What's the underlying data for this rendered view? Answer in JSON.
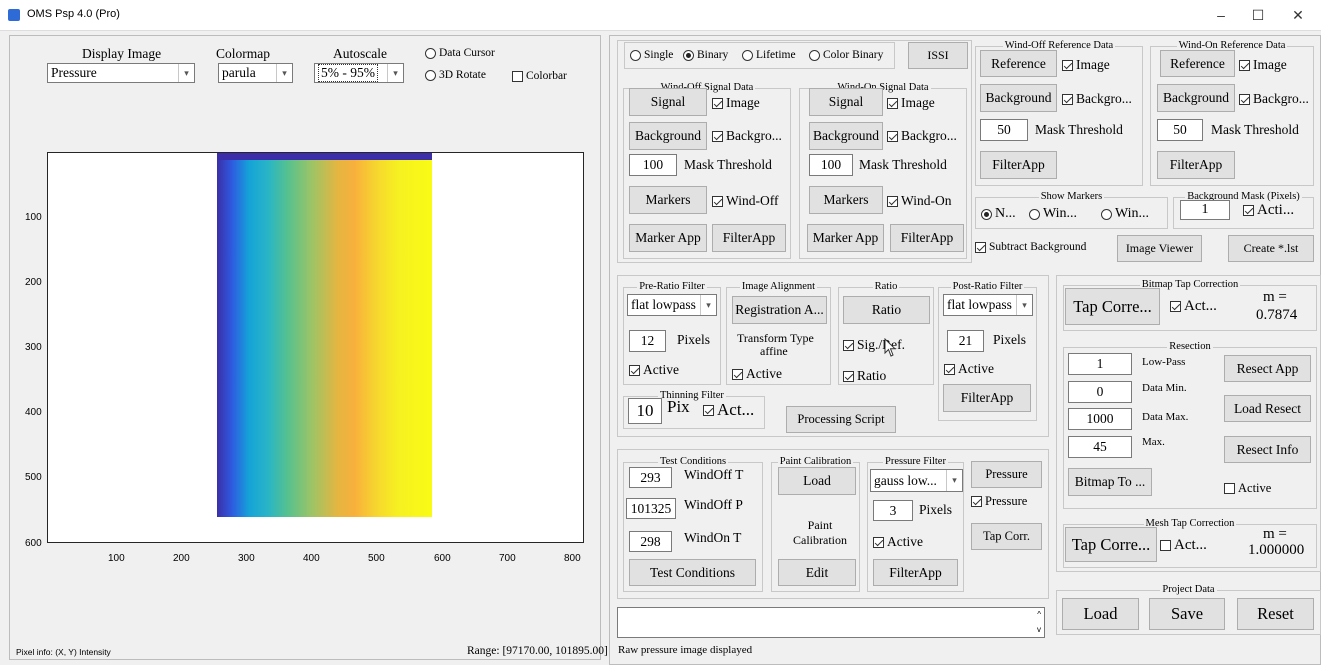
{
  "window": {
    "title": "OMS Psp 4.0 (Pro)",
    "minimize": "–",
    "maximize": "☐",
    "close": "✕"
  },
  "left": {
    "display_image": {
      "label": "Display Image",
      "value": "Pressure"
    },
    "colormap": {
      "label": "Colormap",
      "value": "parula"
    },
    "autoscale": {
      "label": "Autoscale",
      "value": "5% - 95%"
    },
    "data_cursor": "Data Cursor",
    "rotate3d": "3D Rotate",
    "colorbar": "Colorbar",
    "pixel_info": "Pixel info: (X, Y)  Intensity",
    "range": "Range: [97170.00, 101895.00]",
    "xticks": [
      "100",
      "200",
      "300",
      "400",
      "500",
      "600",
      "700",
      "800"
    ],
    "yticks": [
      "100",
      "200",
      "300",
      "400",
      "500",
      "600"
    ]
  },
  "mode": {
    "single": "Single",
    "binary": "Binary",
    "lifetime": "Lifetime",
    "color_binary": "Color Binary",
    "issi": "ISSI"
  },
  "wind_off_signal": {
    "title": "Wind-Off Signal Data",
    "signal": "Signal",
    "image": "Image",
    "background": "Background",
    "backgro": "Backgro...",
    "mask_value": "100",
    "mask_label": "Mask Threshold",
    "markers": "Markers",
    "wind": "Wind-Off",
    "marker_app": "Marker App",
    "filter_app": "FilterApp"
  },
  "wind_on_signal": {
    "title": "Wind-On Signal Data",
    "signal": "Signal",
    "image": "Image",
    "background": "Background",
    "backgro": "Backgro...",
    "mask_value": "100",
    "mask_label": "Mask Threshold",
    "markers": "Markers",
    "wind": "Wind-On",
    "marker_app": "Marker App",
    "filter_app": "FilterApp"
  },
  "wind_off_ref": {
    "title": "Wind-Off Reference Data",
    "reference": "Reference",
    "image": "Image",
    "background": "Background",
    "backgro": "Backgro...",
    "mask_value": "50",
    "mask_label": "Mask Threshold",
    "filter_app": "FilterApp"
  },
  "wind_on_ref": {
    "title": "Wind-On Reference Data",
    "reference": "Reference",
    "image": "Image",
    "background": "Background",
    "backgro": "Backgro...",
    "mask_value": "50",
    "mask_label": "Mask Threshold",
    "filter_app": "FilterApp"
  },
  "show_markers": {
    "title": "Show Markers",
    "opt1": "N...",
    "opt2": "Win...",
    "opt3": "Win..."
  },
  "bg_mask": {
    "title": "Background Mask (Pixels)",
    "value": "1",
    "active": "Acti..."
  },
  "subtract_background": "Subtract Background",
  "image_viewer": "Image Viewer",
  "create_lst": "Create *.lst",
  "pre_ratio": {
    "title": "Pre-Ratio Filter",
    "filter": "flat lowpass",
    "pixels_value": "12",
    "pixels_label": "Pixels",
    "active": "Active"
  },
  "image_alignment": {
    "title": "Image Alignment",
    "button": "Registration A...",
    "transform_label": "Transform Type",
    "transform_value": "affine",
    "active": "Active"
  },
  "ratio": {
    "title": "Ratio",
    "button": "Ratio",
    "sig_ref": "Sig./Ref.",
    "ratio_chk": "Ratio"
  },
  "post_ratio": {
    "title": "Post-Ratio Filter",
    "filter": "flat lowpass",
    "pixels_value": "21",
    "pixels_label": "Pixels",
    "active": "Active",
    "filter_app": "FilterApp"
  },
  "thinning": {
    "title": "Thinning Filter",
    "value": "10",
    "pix": "Pix",
    "active": "Act..."
  },
  "processing_script": "Processing Script",
  "bitmap_tap": {
    "title": "Bitmap Tap Correction",
    "button": "Tap Corre...",
    "active": "Act...",
    "m_label": "m =",
    "m_value": "0.7874"
  },
  "resection": {
    "title": "Resection",
    "lowpass_value": "1",
    "lowpass_label": "Low-Pass",
    "datamin_value": "0",
    "datamin_label": "Data Min.",
    "datamax_value": "1000",
    "datamax_label": "Data Max.",
    "max_value": "45",
    "max_label": "Max.",
    "resect_app": "Resect App",
    "load_resect": "Load Resect",
    "resect_info": "Resect Info",
    "bitmap_to": "Bitmap To ...",
    "active": "Active"
  },
  "test_conditions": {
    "title": "Test Conditions",
    "woff_t_value": "293",
    "woff_t_label": "WindOff T",
    "woff_p_value": "101325",
    "woff_p_label": "WindOff P",
    "won_t_value": "298",
    "won_t_label": "WindOn T",
    "button": "Test Conditions"
  },
  "paint_cal": {
    "title": "Paint Calibration",
    "load": "Load",
    "label": "Paint Calibration",
    "edit": "Edit"
  },
  "pressure_filter": {
    "title": "Pressure Filter",
    "filter": "gauss low...",
    "pixels_value": "3",
    "pixels_label": "Pixels",
    "active": "Active",
    "filter_app": "FilterApp"
  },
  "pressure_btn": "Pressure",
  "pressure_chk": "Pressure",
  "tap_corr": "Tap Corr.",
  "mesh_tap": {
    "title": "Mesh Tap Correction",
    "button": "Tap Corre...",
    "active": "Act...",
    "m_label": "m =",
    "m_value": "1.000000"
  },
  "project_data": {
    "title": "Project Data",
    "load": "Load",
    "save": "Save",
    "reset": "Reset"
  },
  "status": "Raw pressure image displayed",
  "colors": {
    "dark_blue": "#3b2ea8",
    "mid_cyan": "#2ab5c5",
    "mid_green": "#88c66c",
    "orange": "#f8b03c",
    "yellow": "#f6f022"
  }
}
